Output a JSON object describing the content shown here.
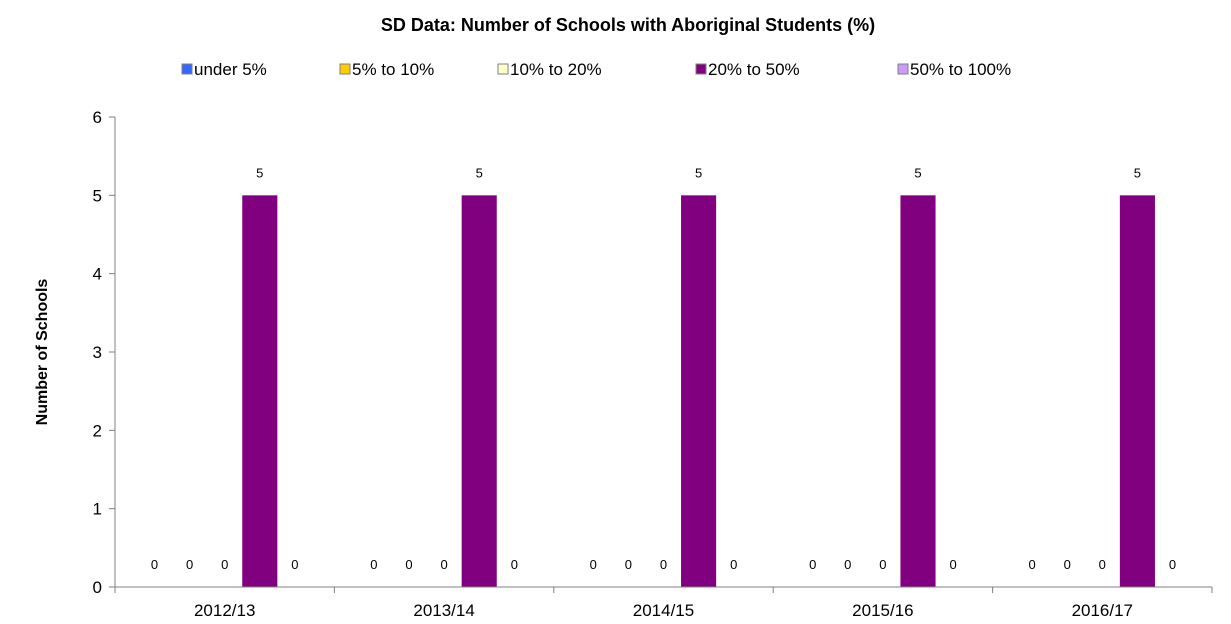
{
  "chart_data": {
    "type": "bar",
    "title": "SD Data: Number of Schools with Aboriginal Students (%)",
    "xlabel": "",
    "ylabel": "Number of Schools",
    "categories": [
      "2012/13",
      "2013/14",
      "2014/15",
      "2015/16",
      "2016/17"
    ],
    "series": [
      {
        "name": "under 5%",
        "color": "#3366ff",
        "values": [
          0,
          0,
          0,
          0,
          0
        ]
      },
      {
        "name": "5% to 10%",
        "color": "#ffcc00",
        "values": [
          0,
          0,
          0,
          0,
          0
        ]
      },
      {
        "name": "10% to 20%",
        "color": "#ffffcc",
        "values": [
          0,
          0,
          0,
          0,
          0
        ]
      },
      {
        "name": "20% to 50%",
        "color": "#800080",
        "values": [
          5,
          5,
          5,
          5,
          5
        ]
      },
      {
        "name": "50% to 100%",
        "color": "#cc99ff",
        "values": [
          0,
          0,
          0,
          0,
          0
        ]
      }
    ],
    "ylim": [
      0,
      6
    ],
    "yticks": [
      0,
      1,
      2,
      3,
      4,
      5,
      6
    ],
    "data_labels": true,
    "grid": false,
    "legend_position": "top"
  }
}
